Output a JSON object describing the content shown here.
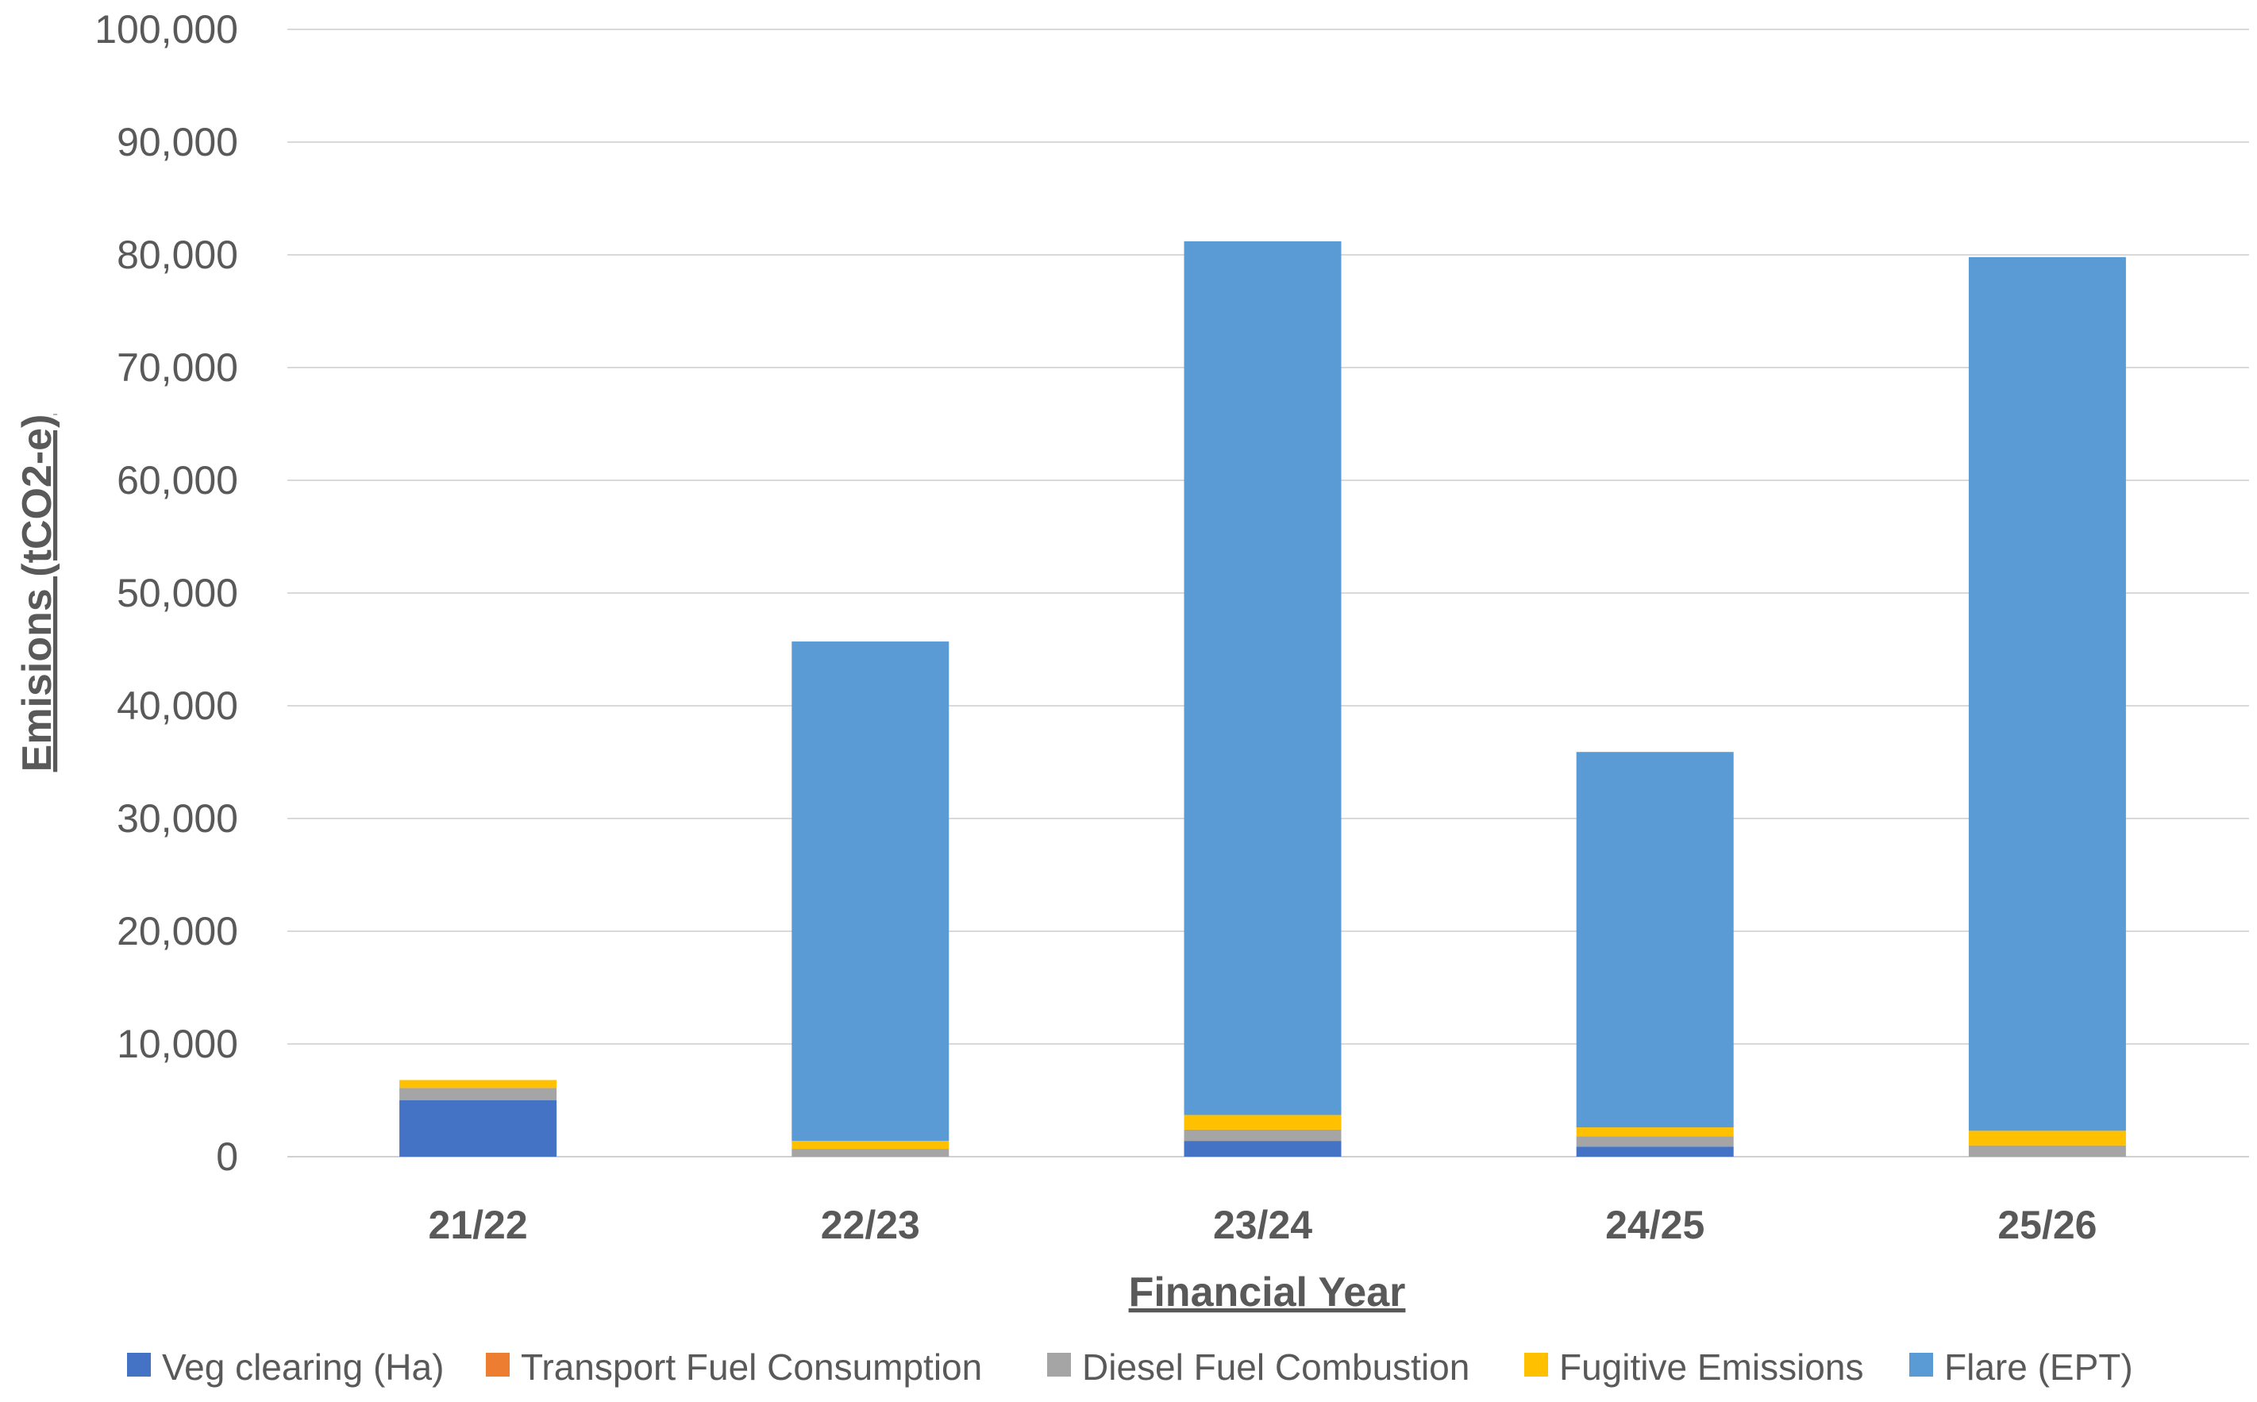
{
  "chart_data": {
    "type": "bar",
    "stacked": true,
    "xlabel": "Financial Year",
    "ylabel": "Emisions (tCO2-e)",
    "ylim": [
      0,
      100000
    ],
    "ytick_step": 10000,
    "yticks": [
      "0",
      "10,000",
      "20,000",
      "30,000",
      "40,000",
      "50,000",
      "60,000",
      "70,000",
      "80,000",
      "90,000",
      "100,000"
    ],
    "grid": true,
    "legend_position": "bottom",
    "categories": [
      "21/22",
      "22/23",
      "23/24",
      "24/25",
      "25/26"
    ],
    "series": [
      {
        "name": "Veg clearing (Ha)",
        "color": "#4472C4",
        "values": [
          5000,
          0,
          1400,
          900,
          0
        ]
      },
      {
        "name": "Transport Fuel Consumption",
        "color": "#ED7D31",
        "values": [
          0,
          0,
          0,
          0,
          0
        ]
      },
      {
        "name": "Diesel Fuel Combustion",
        "color": "#A5A5A5",
        "values": [
          1100,
          700,
          1000,
          900,
          1000
        ]
      },
      {
        "name": "Fugitive Emissions",
        "color": "#FFC000",
        "values": [
          700,
          700,
          1300,
          800,
          1300
        ]
      },
      {
        "name": "Flare (EPT)",
        "color": "#5B9BD5",
        "values": [
          0,
          44300,
          77500,
          33300,
          77500
        ]
      }
    ]
  }
}
